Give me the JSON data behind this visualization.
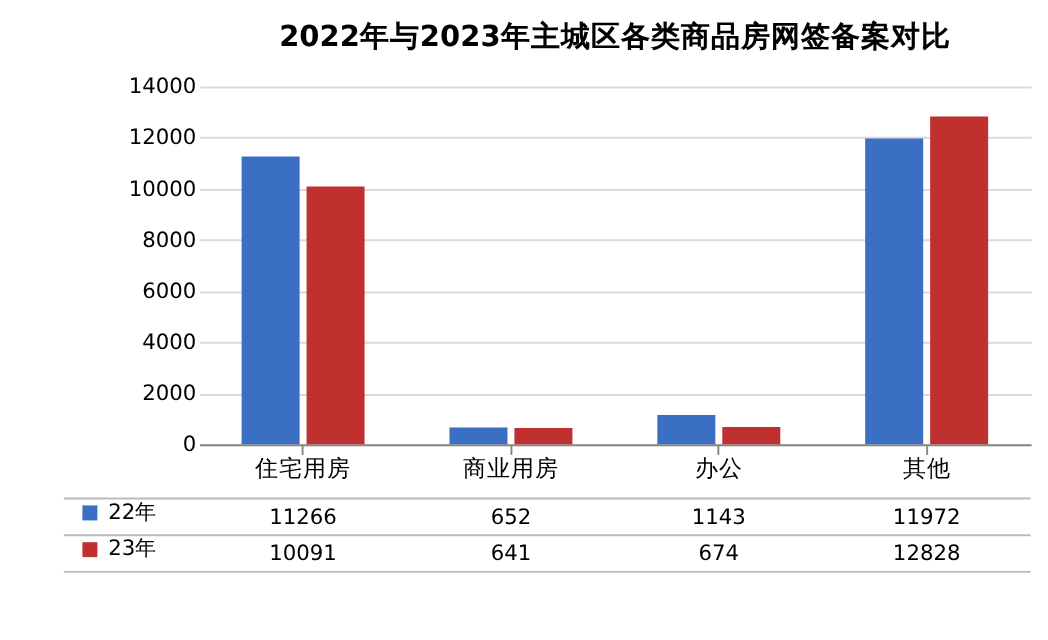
{
  "chart_data": {
    "type": "bar",
    "title": "2022年与2023年主城区各类商品房网签备案对比",
    "categories": [
      "住宅用房",
      "商业用房",
      "办公",
      "其他"
    ],
    "series": [
      {
        "name": "22年",
        "color": "#3a6fc4",
        "values": [
          11266,
          652,
          1143,
          11972
        ]
      },
      {
        "name": "23年",
        "color": "#c0302e",
        "values": [
          10091,
          641,
          674,
          12828
        ]
      }
    ],
    "ylim": [
      0,
      14000
    ],
    "yticks": [
      0,
      2000,
      4000,
      6000,
      8000,
      10000,
      12000,
      14000
    ],
    "grid": "y",
    "legend": "bottom",
    "data_labels": true
  }
}
